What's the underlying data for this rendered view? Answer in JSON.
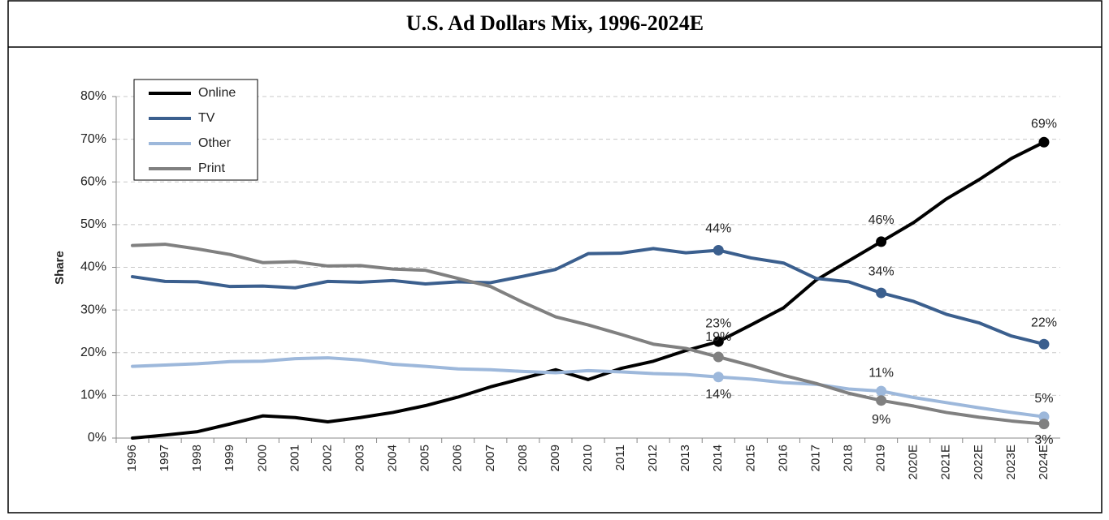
{
  "chart_data": {
    "type": "line",
    "title": "U.S. Ad Dollars Mix, 1996-2024E",
    "ylabel": "Share",
    "categories": [
      "1996",
      "1997",
      "1998",
      "1999",
      "2000",
      "2001",
      "2002",
      "2003",
      "2004",
      "2005",
      "2006",
      "2007",
      "2008",
      "2009",
      "2010",
      "2011",
      "2012",
      "2013",
      "2014",
      "2015",
      "2016",
      "2017",
      "2018",
      "2019",
      "2020E",
      "2021E",
      "2022E",
      "2023E",
      "2024E"
    ],
    "series": [
      {
        "name": "Online",
        "color": "#000000",
        "values": [
          0,
          0.7,
          1.5,
          3.3,
          5.2,
          4.8,
          3.8,
          4.8,
          6,
          7.6,
          9.6,
          12,
          14,
          16,
          13.7,
          16.3,
          18,
          20.5,
          22.6,
          26.5,
          30.5,
          37,
          41.5,
          46,
          50.5,
          56,
          60.5,
          65.5,
          69.3
        ],
        "value_labels": [
          null,
          null,
          null,
          null,
          null,
          null,
          null,
          null,
          null,
          null,
          null,
          null,
          null,
          null,
          null,
          null,
          null,
          null,
          "23%",
          null,
          null,
          null,
          null,
          "46%",
          null,
          null,
          null,
          null,
          "69%"
        ]
      },
      {
        "name": "TV",
        "color": "#3b5f8e",
        "values": [
          37.8,
          36.7,
          36.6,
          35.5,
          35.6,
          35.2,
          36.7,
          36.5,
          36.9,
          36.1,
          36.6,
          36.4,
          37.9,
          39.5,
          43.2,
          43.3,
          44.4,
          43.4,
          44,
          42.2,
          41,
          37.4,
          36.6,
          34,
          32,
          29,
          27,
          23.9,
          22
        ],
        "value_labels": [
          null,
          null,
          null,
          null,
          null,
          null,
          null,
          null,
          null,
          null,
          null,
          null,
          null,
          null,
          null,
          null,
          null,
          null,
          "44%",
          null,
          null,
          null,
          null,
          "34%",
          null,
          null,
          null,
          null,
          "22%"
        ]
      },
      {
        "name": "Other",
        "color": "#9db8db",
        "values": [
          16.8,
          17.1,
          17.4,
          17.9,
          18,
          18.6,
          18.8,
          18.3,
          17.3,
          16.8,
          16.2,
          16,
          15.6,
          15.3,
          15.8,
          15.5,
          15.1,
          14.9,
          14.3,
          13.8,
          13,
          12.6,
          11.5,
          11,
          9.5,
          8.3,
          7.1,
          6,
          5
        ],
        "value_labels": [
          null,
          null,
          null,
          null,
          null,
          null,
          null,
          null,
          null,
          null,
          null,
          null,
          null,
          null,
          null,
          null,
          null,
          null,
          "14%",
          null,
          null,
          null,
          null,
          "11%",
          null,
          null,
          null,
          null,
          "5%"
        ]
      },
      {
        "name": "Print",
        "color": "#808080",
        "values": [
          45.1,
          45.4,
          44.3,
          43,
          41.1,
          41.3,
          40.3,
          40.4,
          39.6,
          39.3,
          37.4,
          35.5,
          31.8,
          28.4,
          26.5,
          24.3,
          22,
          21,
          19,
          17,
          14.7,
          12.8,
          10.5,
          8.8,
          7.5,
          6,
          4.9,
          4,
          3.3
        ],
        "value_labels": [
          null,
          null,
          null,
          null,
          null,
          null,
          null,
          null,
          null,
          null,
          null,
          null,
          null,
          null,
          null,
          null,
          null,
          null,
          "19%",
          null,
          null,
          null,
          null,
          "9%",
          null,
          null,
          null,
          null,
          "3%"
        ]
      }
    ],
    "ylim": [
      0,
      80
    ],
    "yticks": [
      {
        "value": 0,
        "label": "0%"
      },
      {
        "value": 10,
        "label": "10%"
      },
      {
        "value": 20,
        "label": "20%"
      },
      {
        "value": 30,
        "label": "30%"
      },
      {
        "value": 40,
        "label": "40%"
      },
      {
        "value": 50,
        "label": "50%"
      },
      {
        "value": 60,
        "label": "60%"
      },
      {
        "value": 70,
        "label": "70%"
      },
      {
        "value": 80,
        "label": "80%"
      }
    ],
    "grid": true,
    "legend": "upper left"
  }
}
